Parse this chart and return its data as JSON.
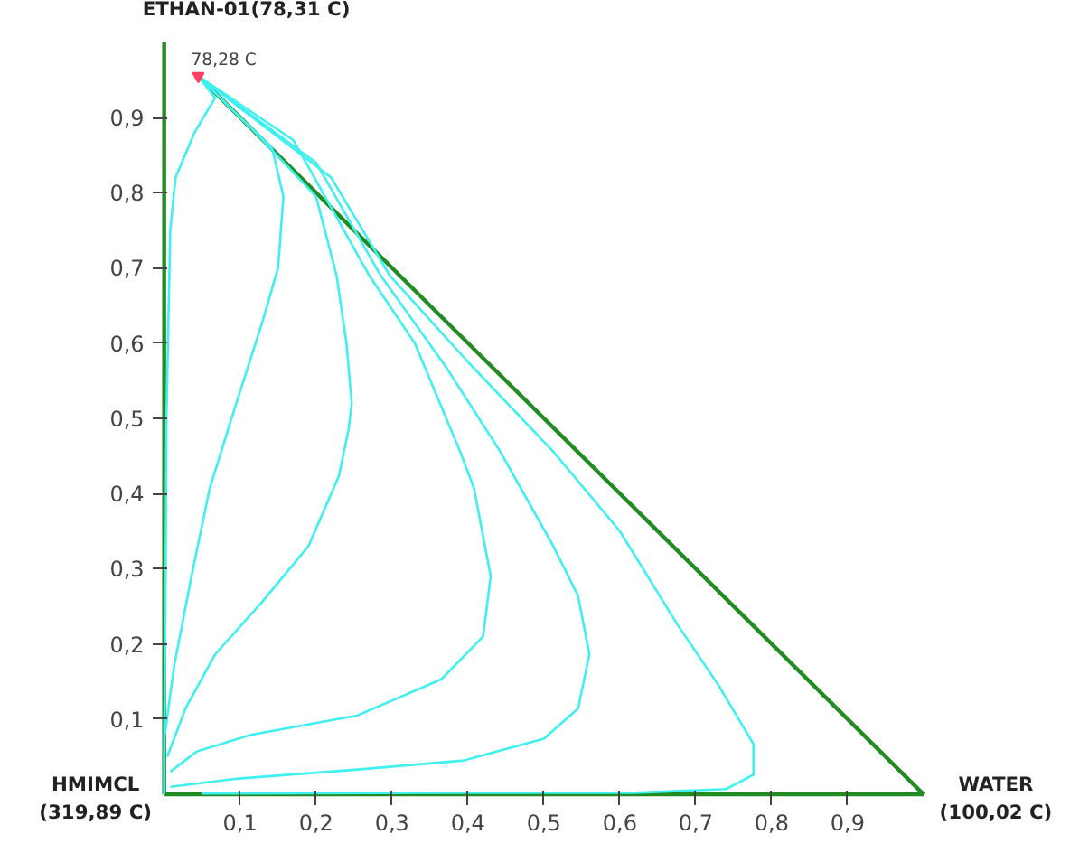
{
  "chart_data": {
    "type": "line",
    "xlim": [
      0,
      1
    ],
    "ylim": [
      0,
      1
    ],
    "xticks": [
      {
        "value": 0.1,
        "label": "0,1"
      },
      {
        "value": 0.2,
        "label": "0,2"
      },
      {
        "value": 0.3,
        "label": "0,3"
      },
      {
        "value": 0.4,
        "label": "0,4"
      },
      {
        "value": 0.5,
        "label": "0,5"
      },
      {
        "value": 0.6,
        "label": "0,6"
      },
      {
        "value": 0.7,
        "label": "0,7"
      },
      {
        "value": 0.8,
        "label": "0,8"
      },
      {
        "value": 0.9,
        "label": "0,9"
      }
    ],
    "yticks": [
      {
        "value": 0.1,
        "label": "0,1"
      },
      {
        "value": 0.2,
        "label": "0,2"
      },
      {
        "value": 0.3,
        "label": "0,3"
      },
      {
        "value": 0.4,
        "label": "0,4"
      },
      {
        "value": 0.5,
        "label": "0,5"
      },
      {
        "value": 0.6,
        "label": "0,6"
      },
      {
        "value": 0.7,
        "label": "0,7"
      },
      {
        "value": 0.8,
        "label": "0,8"
      },
      {
        "value": 0.9,
        "label": "0,9"
      }
    ],
    "grid": false,
    "marker": "none",
    "line_style": "solid",
    "annotations": [
      {
        "text": "ETHAN-01(78,31 C)",
        "x": 0,
        "y": 1
      },
      {
        "text": "HMIMCL\n(319,89 C)",
        "x": 0,
        "y": 0
      },
      {
        "text": "WATER\n(100,02 C)",
        "x": 1,
        "y": 0
      },
      {
        "text": "78,28 C",
        "x": 0.045,
        "y": 0.955
      }
    ],
    "series": [
      {
        "color": "#228b22",
        "x": [
          0,
          0
        ],
        "values": [
          1,
          0
        ]
      },
      {
        "color": "#228b22",
        "x": [
          1,
          0
        ],
        "values": [
          0,
          0
        ]
      },
      {
        "color": "#228b22",
        "x": [
          0.045,
          1
        ],
        "values": [
          0.955,
          0
        ]
      },
      {
        "color": "#40f0f0",
        "x": [
          0.045,
          0.067,
          0.04,
          0.015,
          0.008,
          0.005,
          0.003,
          0.002,
          0,
          0
        ],
        "values": [
          0.955,
          0.926,
          0.88,
          0.82,
          0.75,
          0.6,
          0.5,
          0.3,
          0.05,
          0
        ]
      },
      {
        "color": "#40f0f0",
        "x": [
          0.045,
          0.1,
          0.142,
          0.157,
          0.15,
          0.13,
          0.095,
          0.06,
          0.036,
          0.013,
          0.001
        ],
        "values": [
          0.955,
          0.9,
          0.86,
          0.795,
          0.7,
          0.63,
          0.52,
          0.407,
          0.29,
          0.17,
          0.08
        ]
      },
      {
        "color": "#40f0f0",
        "x": [
          0.045,
          0.12,
          0.2,
          0.227,
          0.24,
          0.247,
          0.243,
          0.23,
          0.19,
          0.13,
          0.067,
          0.028,
          0.004
        ],
        "values": [
          0.955,
          0.88,
          0.795,
          0.69,
          0.6,
          0.52,
          0.486,
          0.423,
          0.33,
          0.257,
          0.186,
          0.114,
          0.05
        ]
      },
      {
        "color": "#40f0f0",
        "x": [
          0.045,
          0.17,
          0.27,
          0.33,
          0.39,
          0.408,
          0.43,
          0.42,
          0.365,
          0.255,
          0.114,
          0.043,
          0.008
        ],
        "values": [
          0.955,
          0.87,
          0.69,
          0.6,
          0.455,
          0.407,
          0.29,
          0.21,
          0.153,
          0.105,
          0.079,
          0.057,
          0.03
        ]
      },
      {
        "color": "#40f0f0",
        "x": [
          0.045,
          0.2,
          0.285,
          0.37,
          0.443,
          0.513,
          0.545,
          0.56,
          0.545,
          0.5,
          0.395,
          0.255,
          0.098,
          0.008
        ],
        "values": [
          0.955,
          0.84,
          0.69,
          0.57,
          0.455,
          0.329,
          0.264,
          0.186,
          0.114,
          0.074,
          0.045,
          0.033,
          0.021,
          0.01
        ]
      },
      {
        "color": "#40f0f0",
        "x": [
          0.045,
          0.22,
          0.297,
          0.4,
          0.513,
          0.6,
          0.677,
          0.73,
          0.776,
          0.776,
          0.74,
          0.62,
          0.4,
          0.05
        ],
        "values": [
          0.955,
          0.82,
          0.69,
          0.575,
          0.455,
          0.35,
          0.224,
          0.145,
          0.067,
          0.026,
          0.007,
          0.002,
          0.002,
          0.001
        ]
      },
      {
        "type": "scatter",
        "marker": "triangle",
        "color": "#ff4060",
        "x": [
          0.045
        ],
        "values": [
          0.955
        ]
      }
    ]
  }
}
